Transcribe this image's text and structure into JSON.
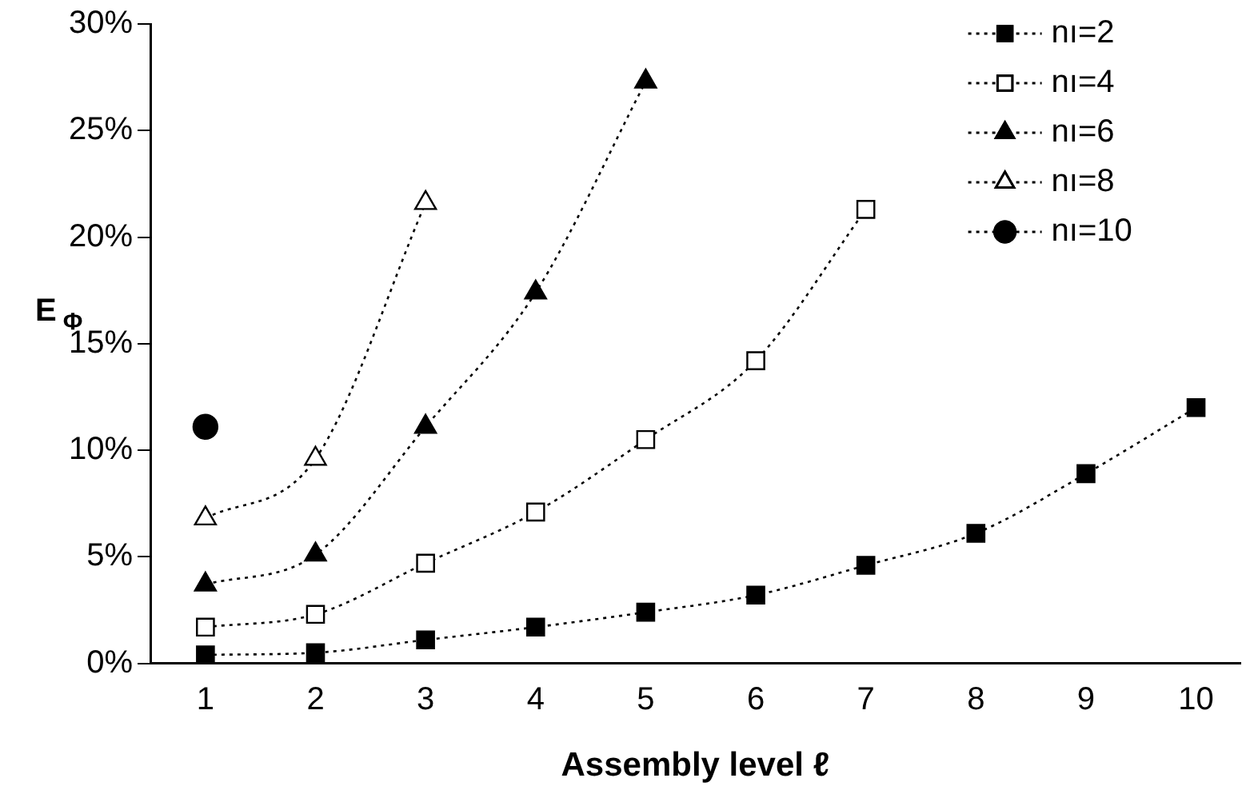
{
  "chart_data": {
    "type": "line",
    "xlabel": "Assembly level ℓ",
    "ylabel": "E$_{Φ}$",
    "x": [
      1,
      2,
      3,
      4,
      5,
      6,
      7,
      8,
      9,
      10
    ],
    "xlim": [
      0.5,
      10.4
    ],
    "xticks": [
      1,
      2,
      3,
      4,
      5,
      6,
      7,
      8,
      9,
      10
    ],
    "ylim": [
      0,
      30
    ],
    "yticks": [
      {
        "value": 0,
        "label": "0%"
      },
      {
        "value": 5,
        "label": "5%"
      },
      {
        "value": 10,
        "label": "10%"
      },
      {
        "value": 15,
        "label": "15%"
      },
      {
        "value": 20,
        "label": "20%"
      },
      {
        "value": 25,
        "label": "25%"
      },
      {
        "value": 30,
        "label": "30%"
      }
    ],
    "grid": false,
    "legend": "top right",
    "line_style": "dotted",
    "series": [
      {
        "name": "nı=2",
        "color": "#000000",
        "marker": "square",
        "values": [
          0.4,
          0.5,
          1.1,
          1.7,
          2.4,
          3.2,
          4.6,
          6.1,
          8.9,
          12.0
        ]
      },
      {
        "name": "nı=4",
        "color": "#000000",
        "marker": "square",
        "values": [
          1.7,
          2.3,
          4.7,
          7.1,
          10.5,
          14.2,
          21.3,
          null,
          null,
          null
        ]
      },
      {
        "name": "nı=6",
        "color": "#000000",
        "marker": "triangle",
        "values": [
          3.7,
          5.1,
          11.1,
          17.4,
          27.3,
          null,
          null,
          null,
          null,
          null
        ]
      },
      {
        "name": "nı=8",
        "color": "#000000",
        "marker": "triangle",
        "values": [
          6.8,
          9.6,
          21.6,
          null,
          null,
          null,
          null,
          null,
          null,
          null
        ]
      },
      {
        "name": "nı=10",
        "color": "#000000",
        "marker": "circle",
        "values": [
          11.1,
          null,
          null,
          null,
          null,
          null,
          null,
          null,
          null,
          null
        ]
      }
    ]
  }
}
